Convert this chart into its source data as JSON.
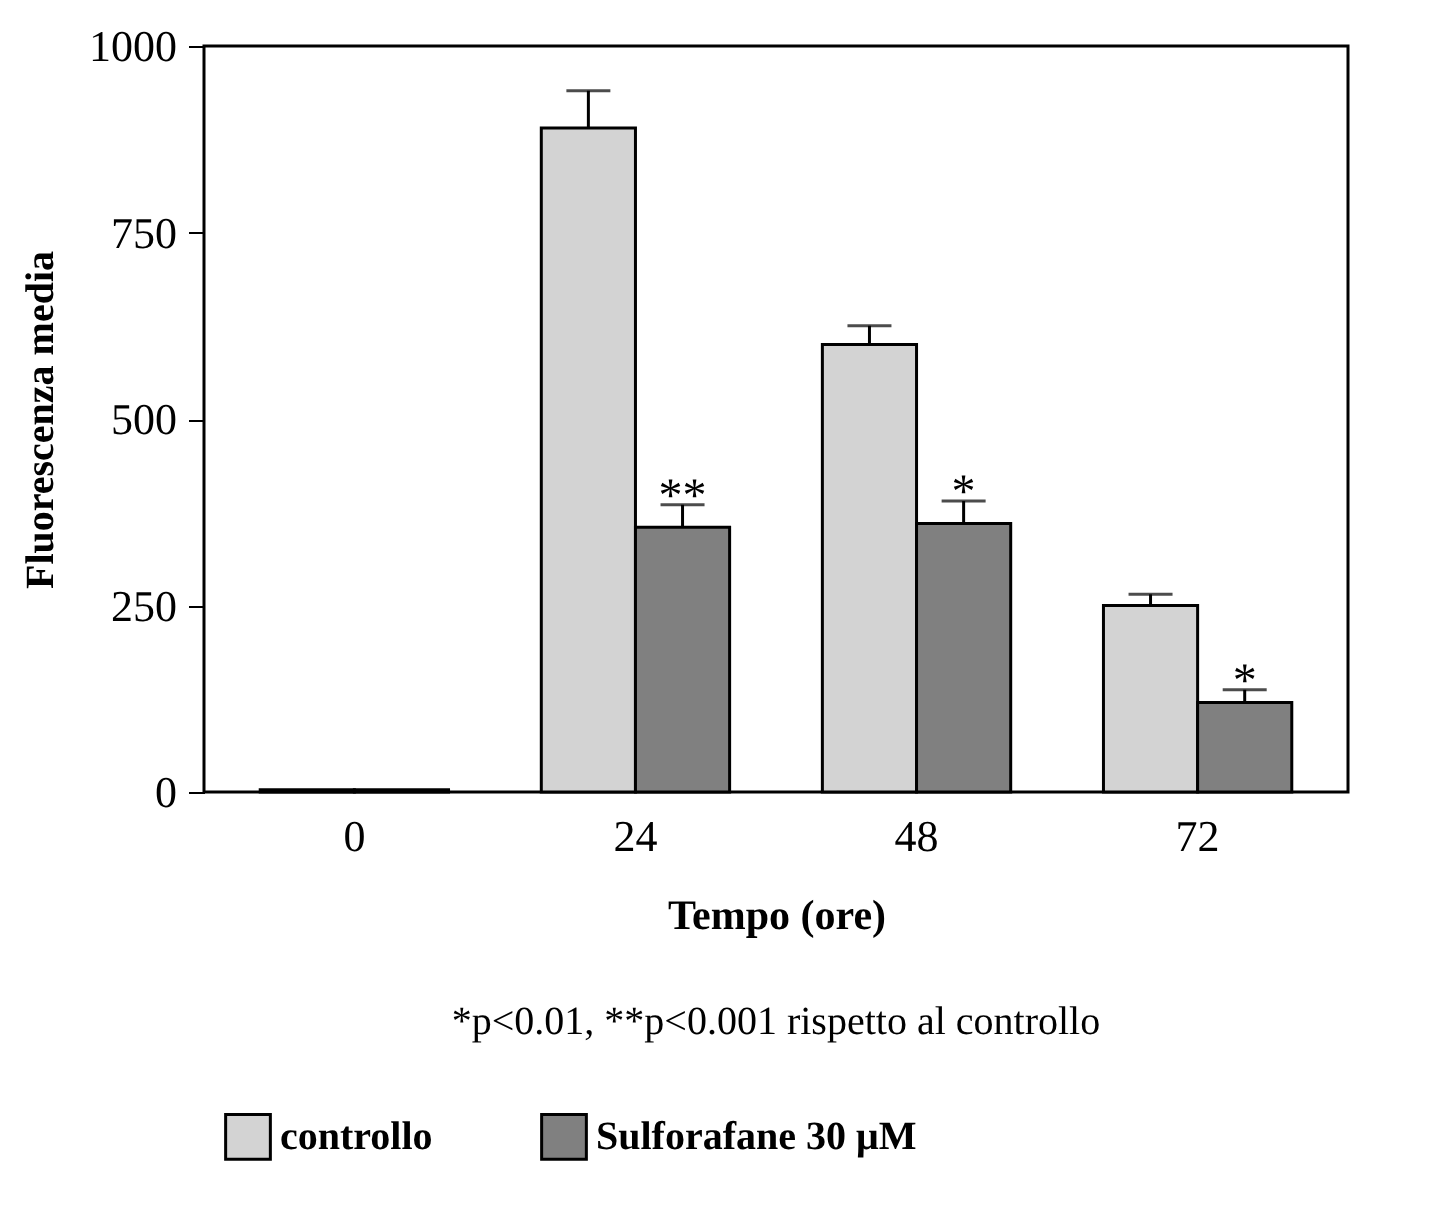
{
  "chart_data": {
    "type": "bar",
    "xlabel": "Tempo (ore)",
    "ylabel": "Fluorescenza media",
    "categories": [
      "0",
      "24",
      "48",
      "72"
    ],
    "series": [
      {
        "name": "controllo",
        "color": "#d3d3d3",
        "values": [
          3,
          890,
          600,
          250
        ],
        "errors": [
          null,
          50,
          25,
          15
        ]
      },
      {
        "name": "Sulforafane 30 μM",
        "color": "#808080",
        "values": [
          3,
          355,
          360,
          120
        ],
        "errors": [
          null,
          30,
          30,
          17
        ]
      }
    ],
    "ylim": [
      0,
      1000
    ],
    "yticks": [
      0,
      250,
      500,
      750,
      1000
    ],
    "grid": false,
    "legend": "bottom",
    "annotations": [
      {
        "text": "**",
        "x": "24",
        "y": 385
      },
      {
        "text": "*",
        "x": "48",
        "y": 390
      },
      {
        "text": "*",
        "x": "72",
        "y": 137
      },
      "*p<0.01, **p<0.001 rispetto al controllo"
    ]
  }
}
